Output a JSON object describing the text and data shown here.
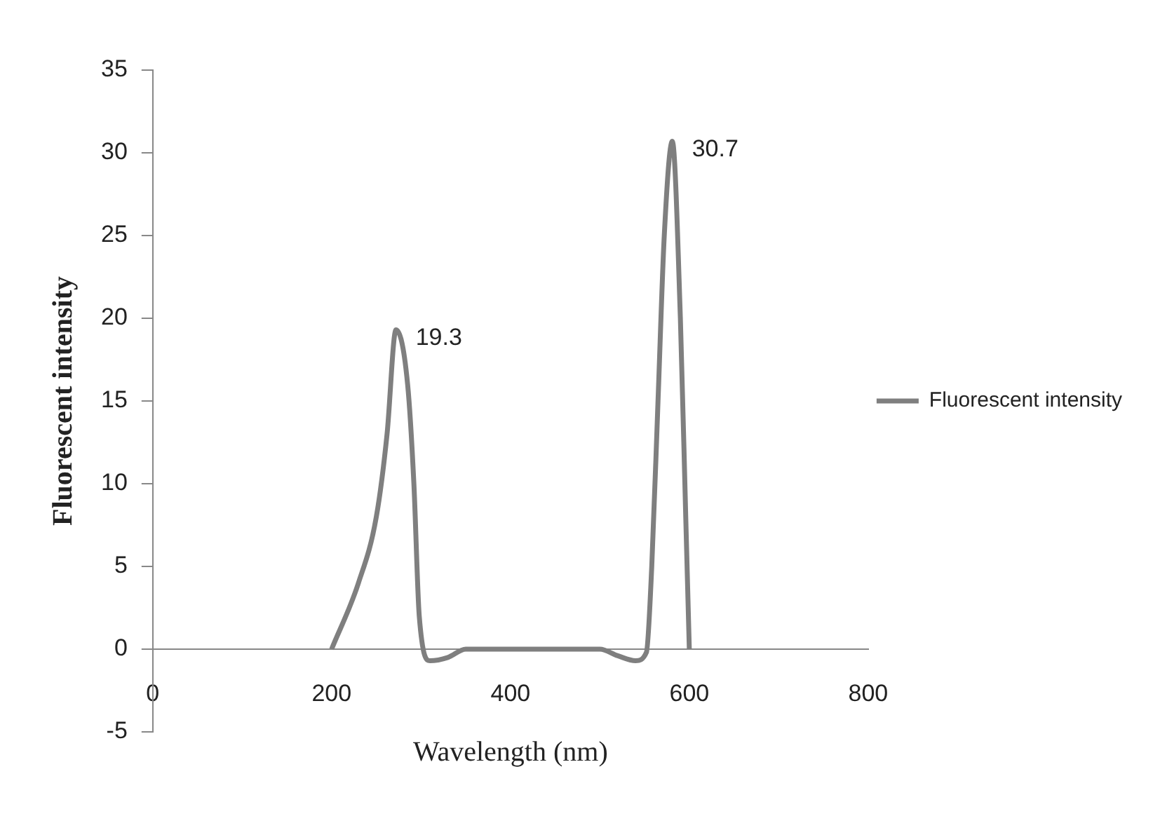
{
  "chart_data": {
    "type": "line",
    "xlabel": "Wavelength (nm)",
    "ylabel": "Fluorescent intensity",
    "xlim": [
      0,
      800
    ],
    "xticks": [
      0,
      200,
      400,
      600,
      800
    ],
    "ylim": [
      -5,
      35
    ],
    "yticks": [
      -5,
      0,
      5,
      10,
      15,
      20,
      25,
      30,
      35
    ],
    "legend": "right",
    "marker": "none",
    "grid": false,
    "series": [
      {
        "name": "Fluorescent intensity",
        "color": "#7f7f7f",
        "x": [
          200,
          230,
          250,
          262,
          272,
          285,
          292,
          298,
          310,
          330,
          350,
          500,
          520,
          540,
          552,
          558,
          565,
          572,
          581,
          590,
          596,
          600
        ],
        "values": [
          0,
          4,
          8,
          13,
          19.3,
          16,
          10,
          2,
          -0.7,
          -0.5,
          0,
          0,
          -0.4,
          -0.7,
          -0.2,
          5,
          15,
          25,
          30.7,
          20,
          8,
          0
        ]
      }
    ],
    "annotations": [
      {
        "text": "19.3",
        "x": 272,
        "y": 19.3
      },
      {
        "text": "30.7",
        "x": 581,
        "y": 30.7
      }
    ]
  }
}
